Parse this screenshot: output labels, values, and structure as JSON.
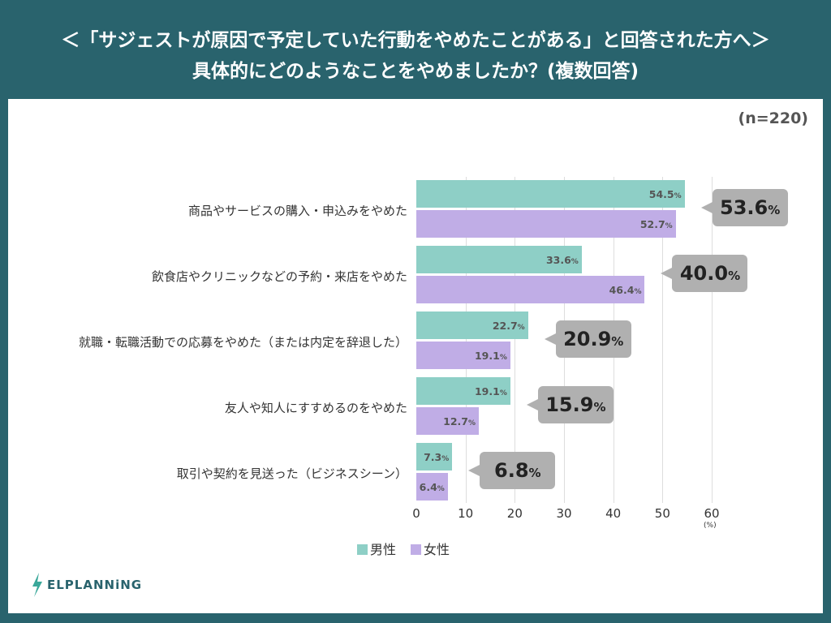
{
  "header": {
    "title_line1": "＜「サジェストが原因で予定していた行動をやめたことがある」と回答された方へ＞",
    "title_line2": "具体的にどのようなことをやめましたか？(複数回答)"
  },
  "sample_size": "(n=220)",
  "logo": "ELPLANNiNG",
  "colors": {
    "male": "#8ecfc6",
    "female": "#c0ade6",
    "bubble": "#b0b0b0",
    "header": "#29636d"
  },
  "chart_data": {
    "type": "bar",
    "orientation": "horizontal",
    "categories": [
      "商品やサービスの購入・申込みをやめた",
      "飲食店やクリニックなどの予約・来店をやめた",
      "就職・転職活動での応募をやめた（または内定を辞退した）",
      "友人や知人にすすめるのをやめた",
      "取引や契約を見送った（ビジネスシーン）"
    ],
    "series": [
      {
        "name": "男性",
        "values": [
          54.5,
          33.6,
          22.7,
          19.1,
          7.3
        ]
      },
      {
        "name": "女性",
        "values": [
          52.7,
          46.4,
          19.1,
          12.7,
          6.4
        ]
      }
    ],
    "totals": [
      53.6,
      40.0,
      20.9,
      15.9,
      6.8
    ],
    "value_suffix": "%",
    "xlim": [
      0,
      60
    ],
    "xticks": [
      0,
      10,
      20,
      30,
      40,
      50,
      60
    ],
    "xunit": "(%)",
    "grid": true,
    "legend": "bottom"
  }
}
